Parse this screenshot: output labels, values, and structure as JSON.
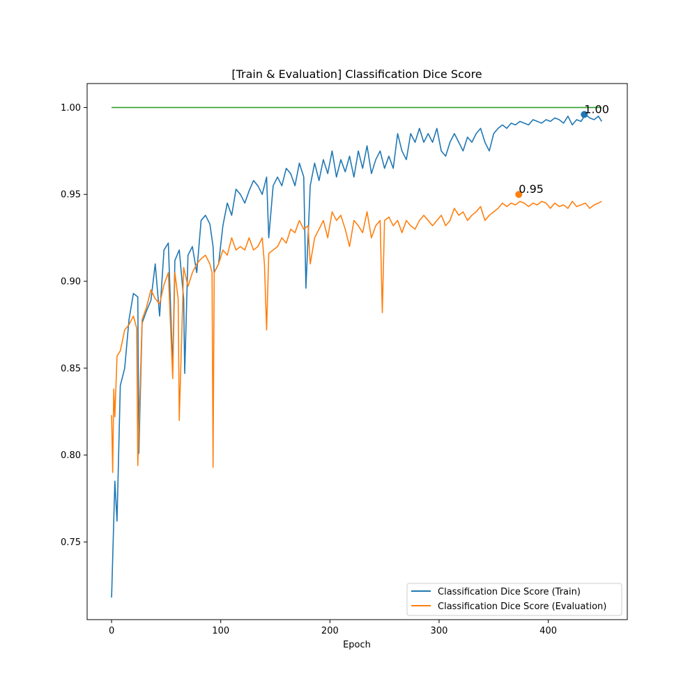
{
  "chart_data": {
    "type": "line",
    "title": "[Train & Evaluation] Classification Dice Score",
    "xlabel": "Epoch",
    "ylabel": "",
    "xlim": [
      -22.4,
      472.4
    ],
    "ylim": [
      0.7053,
      1.0138
    ],
    "grid": false,
    "legend_position": "lower-right",
    "x_ticks": [
      0,
      100,
      200,
      300,
      400
    ],
    "y_ticks": [
      0.75,
      0.8,
      0.85,
      0.9,
      0.95,
      1.0
    ],
    "y_tick_labels": [
      "0.75",
      "0.80",
      "0.85",
      "0.90",
      "0.95",
      "1.00"
    ],
    "series": [
      {
        "name": "Classification Dice Score (Train)",
        "color": "#1f77b4",
        "x": [
          0,
          3,
          5,
          8,
          12,
          16,
          20,
          24,
          25,
          28,
          32,
          36,
          40,
          44,
          48,
          52,
          56,
          58,
          62,
          66,
          67,
          70,
          74,
          78,
          82,
          86,
          90,
          93,
          94,
          98,
          102,
          106,
          110,
          114,
          118,
          122,
          126,
          130,
          134,
          138,
          142,
          144,
          148,
          152,
          156,
          160,
          164,
          168,
          172,
          176,
          178,
          182,
          186,
          190,
          194,
          198,
          202,
          206,
          210,
          214,
          218,
          222,
          226,
          230,
          234,
          238,
          242,
          246,
          250,
          254,
          258,
          262,
          266,
          270,
          274,
          278,
          282,
          286,
          290,
          294,
          298,
          302,
          306,
          310,
          314,
          318,
          322,
          326,
          330,
          334,
          338,
          342,
          346,
          350,
          354,
          358,
          362,
          366,
          370,
          374,
          378,
          382,
          386,
          390,
          394,
          398,
          402,
          406,
          410,
          414,
          418,
          422,
          426,
          430,
          434,
          438,
          442,
          446,
          449
        ],
        "values": [
          0.718,
          0.785,
          0.762,
          0.84,
          0.85,
          0.878,
          0.893,
          0.891,
          0.801,
          0.876,
          0.883,
          0.889,
          0.91,
          0.88,
          0.918,
          0.922,
          0.85,
          0.912,
          0.918,
          0.89,
          0.847,
          0.915,
          0.92,
          0.905,
          0.935,
          0.938,
          0.933,
          0.92,
          0.905,
          0.91,
          0.932,
          0.945,
          0.938,
          0.953,
          0.95,
          0.945,
          0.952,
          0.958,
          0.955,
          0.95,
          0.96,
          0.925,
          0.955,
          0.96,
          0.955,
          0.965,
          0.962,
          0.955,
          0.968,
          0.96,
          0.896,
          0.955,
          0.968,
          0.958,
          0.97,
          0.962,
          0.975,
          0.96,
          0.97,
          0.963,
          0.972,
          0.96,
          0.975,
          0.965,
          0.978,
          0.962,
          0.97,
          0.975,
          0.965,
          0.972,
          0.965,
          0.985,
          0.975,
          0.97,
          0.985,
          0.98,
          0.988,
          0.98,
          0.985,
          0.98,
          0.988,
          0.975,
          0.972,
          0.98,
          0.985,
          0.98,
          0.975,
          0.983,
          0.98,
          0.985,
          0.988,
          0.98,
          0.975,
          0.985,
          0.988,
          0.99,
          0.988,
          0.991,
          0.99,
          0.992,
          0.991,
          0.99,
          0.993,
          0.992,
          0.991,
          0.993,
          0.992,
          0.994,
          0.993,
          0.991,
          0.995,
          0.99,
          0.993,
          0.992,
          0.996,
          0.994,
          0.993,
          0.995,
          0.992
        ]
      },
      {
        "name": "Classification Dice Score (Evaluation)",
        "color": "#ff7f0e",
        "x": [
          0,
          1,
          2,
          3,
          5,
          8,
          12,
          16,
          20,
          23,
          24,
          28,
          32,
          36,
          40,
          44,
          48,
          52,
          56,
          58,
          61,
          62,
          66,
          70,
          74,
          78,
          82,
          86,
          90,
          92,
          93,
          94,
          98,
          102,
          106,
          110,
          114,
          118,
          122,
          126,
          130,
          134,
          138,
          140,
          142,
          144,
          148,
          152,
          156,
          160,
          164,
          168,
          172,
          176,
          180,
          182,
          186,
          190,
          194,
          198,
          202,
          206,
          210,
          214,
          218,
          222,
          226,
          230,
          234,
          238,
          242,
          246,
          248,
          250,
          254,
          258,
          262,
          266,
          270,
          274,
          278,
          282,
          286,
          290,
          294,
          298,
          302,
          306,
          310,
          314,
          318,
          322,
          326,
          330,
          334,
          338,
          342,
          346,
          350,
          354,
          358,
          362,
          366,
          370,
          374,
          378,
          382,
          386,
          390,
          394,
          398,
          402,
          406,
          410,
          414,
          418,
          422,
          426,
          430,
          434,
          438,
          442,
          446,
          449
        ],
        "values": [
          0.823,
          0.79,
          0.838,
          0.822,
          0.857,
          0.86,
          0.872,
          0.875,
          0.88,
          0.873,
          0.794,
          0.878,
          0.885,
          0.895,
          0.89,
          0.887,
          0.898,
          0.905,
          0.844,
          0.905,
          0.89,
          0.82,
          0.908,
          0.897,
          0.905,
          0.91,
          0.913,
          0.915,
          0.91,
          0.905,
          0.793,
          0.905,
          0.91,
          0.918,
          0.915,
          0.925,
          0.918,
          0.92,
          0.918,
          0.925,
          0.918,
          0.92,
          0.925,
          0.91,
          0.872,
          0.916,
          0.918,
          0.92,
          0.925,
          0.922,
          0.93,
          0.928,
          0.935,
          0.93,
          0.932,
          0.91,
          0.925,
          0.93,
          0.935,
          0.925,
          0.94,
          0.935,
          0.938,
          0.93,
          0.92,
          0.935,
          0.932,
          0.928,
          0.94,
          0.925,
          0.932,
          0.935,
          0.882,
          0.935,
          0.937,
          0.932,
          0.935,
          0.928,
          0.935,
          0.932,
          0.93,
          0.935,
          0.938,
          0.935,
          0.932,
          0.935,
          0.938,
          0.932,
          0.935,
          0.942,
          0.938,
          0.94,
          0.935,
          0.938,
          0.94,
          0.943,
          0.935,
          0.938,
          0.94,
          0.942,
          0.945,
          0.943,
          0.945,
          0.944,
          0.946,
          0.945,
          0.943,
          0.945,
          0.944,
          0.946,
          0.945,
          0.942,
          0.945,
          0.943,
          0.944,
          0.942,
          0.946,
          0.943,
          0.944,
          0.945,
          0.942,
          0.944,
          0.945,
          0.946
        ]
      },
      {
        "name": "",
        "color": "#2ca02c",
        "x": [
          0,
          449
        ],
        "values": [
          1.0,
          1.0
        ]
      }
    ],
    "annotations": [
      {
        "x": 433,
        "y": 0.996,
        "text": "1.00",
        "color": "#1f77b4"
      },
      {
        "x": 373,
        "y": 0.95,
        "text": "0.95",
        "color": "#ff7f0e"
      }
    ]
  }
}
